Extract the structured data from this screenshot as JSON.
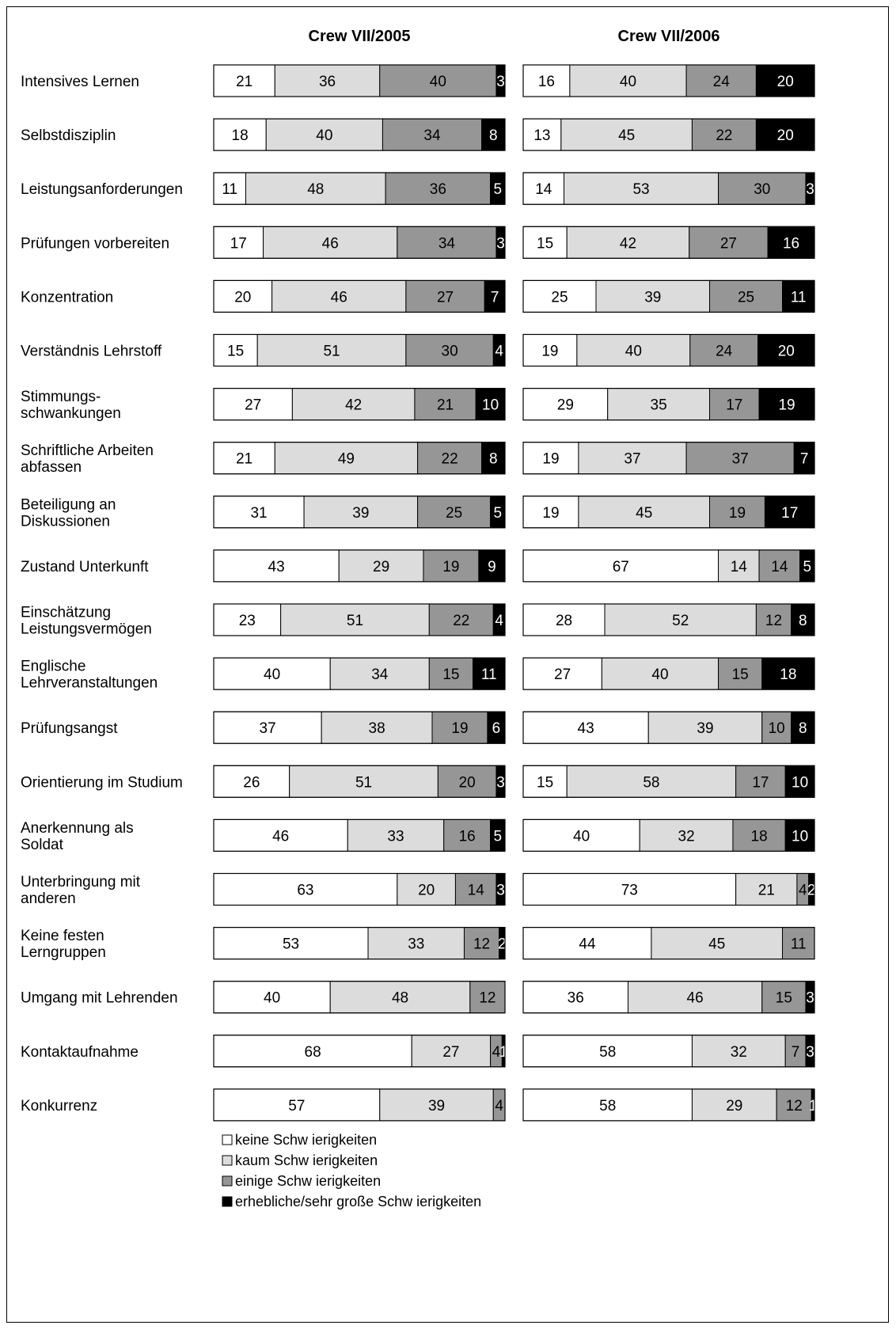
{
  "chart_data": {
    "type": "bar",
    "stacked": true,
    "orientation": "horizontal",
    "normalized_percent": true,
    "panels": [
      {
        "title": "Crew VII/2005",
        "values": [
          [
            21,
            36,
            40,
            3
          ],
          [
            18,
            40,
            34,
            8
          ],
          [
            11,
            48,
            36,
            5
          ],
          [
            17,
            46,
            34,
            3
          ],
          [
            20,
            46,
            27,
            7
          ],
          [
            15,
            51,
            30,
            4
          ],
          [
            27,
            42,
            21,
            10
          ],
          [
            21,
            49,
            22,
            8
          ],
          [
            31,
            39,
            25,
            5
          ],
          [
            43,
            29,
            19,
            9
          ],
          [
            23,
            51,
            22,
            4
          ],
          [
            40,
            34,
            15,
            11
          ],
          [
            37,
            38,
            19,
            6
          ],
          [
            26,
            51,
            20,
            3
          ],
          [
            46,
            33,
            16,
            5
          ],
          [
            63,
            20,
            14,
            3
          ],
          [
            53,
            33,
            12,
            2
          ],
          [
            40,
            48,
            12,
            0
          ],
          [
            68,
            27,
            4,
            1
          ],
          [
            57,
            39,
            4,
            0
          ]
        ]
      },
      {
        "title": "Crew VII/2006",
        "values": [
          [
            16,
            40,
            24,
            20
          ],
          [
            13,
            45,
            22,
            20
          ],
          [
            14,
            53,
            30,
            3
          ],
          [
            15,
            42,
            27,
            16
          ],
          [
            25,
            39,
            25,
            11
          ],
          [
            19,
            40,
            24,
            20
          ],
          [
            29,
            35,
            17,
            19
          ],
          [
            19,
            37,
            37,
            7
          ],
          [
            19,
            45,
            19,
            17
          ],
          [
            67,
            14,
            14,
            5
          ],
          [
            28,
            52,
            12,
            8
          ],
          [
            27,
            40,
            15,
            18
          ],
          [
            43,
            39,
            10,
            8
          ],
          [
            15,
            58,
            17,
            10
          ],
          [
            40,
            32,
            18,
            10
          ],
          [
            73,
            21,
            4,
            2
          ],
          [
            44,
            45,
            11,
            0
          ],
          [
            36,
            46,
            15,
            3
          ],
          [
            58,
            32,
            7,
            3
          ],
          [
            58,
            29,
            12,
            1
          ]
        ]
      }
    ],
    "categories": [
      [
        "Intensives Lernen"
      ],
      [
        "Selbstdisziplin"
      ],
      [
        "Leistungsanforderungen"
      ],
      [
        "Prüfungen vorbereiten"
      ],
      [
        "Konzentration"
      ],
      [
        "Verständnis Lehrstoff"
      ],
      [
        "Stimmungs-",
        "schwankungen"
      ],
      [
        "Schriftliche Arbeiten",
        "abfassen"
      ],
      [
        "Beteiligung an",
        "Diskussionen"
      ],
      [
        "Zustand Unterkunft"
      ],
      [
        "Einschätzung",
        "Leistungsvermögen"
      ],
      [
        "Englische",
        "Lehrveranstaltungen"
      ],
      [
        "Prüfungsangst"
      ],
      [
        "Orientierung im Studium"
      ],
      [
        "Anerkennung als",
        "Soldat"
      ],
      [
        "Unterbringung mit",
        "anderen"
      ],
      [
        "Keine festen",
        "Lerngruppen"
      ],
      [
        "Umgang mit Lehrenden"
      ],
      [
        "Kontaktaufnahme"
      ],
      [
        "Konkurrenz"
      ]
    ],
    "series": [
      {
        "name": "keine Schw ierigkeiten",
        "color": "#ffffff",
        "text_color": "#000000"
      },
      {
        "name": "kaum Schw ierigkeiten",
        "color": "#dcdcdc",
        "text_color": "#000000"
      },
      {
        "name": "einige Schw ierigkeiten",
        "color": "#969696",
        "text_color": "#000000"
      },
      {
        "name": "erhebliche/sehr große Schw ierigkeiten",
        "color": "#000000",
        "text_color": "#ffffff"
      }
    ],
    "xlim": [
      0,
      100
    ],
    "legend_position": "bottom-left",
    "grid": false
  }
}
